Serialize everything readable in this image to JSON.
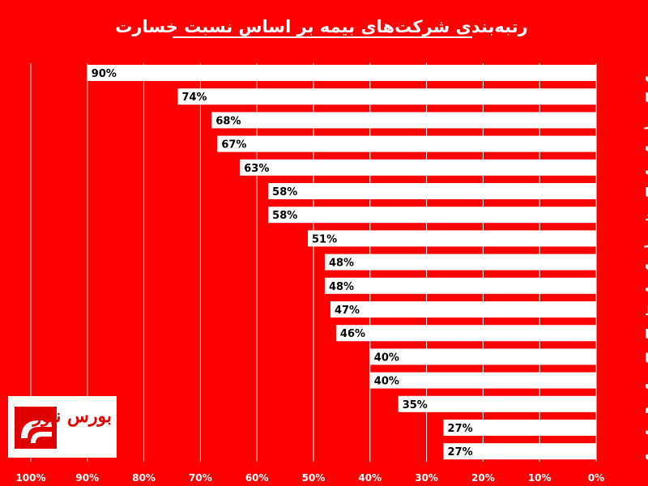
{
  "chart_data": {
    "type": "bar",
    "orientation": "horizontal",
    "title": "رتبه‌بندی شرکت‌های بیمه بر اساس نسبت خسارت",
    "categories": [
      "میهن",
      "دانا",
      "البرز",
      "پارسیان",
      "ودی",
      "آسیا",
      "وسرمد",
      "کوثر",
      "وتعاون",
      "ملت",
      "وحافظ",
      "بساما",
      "ما",
      "نوین",
      "اتکام",
      "اتکای",
      "بپاس"
    ],
    "values": [
      90,
      74,
      68,
      67,
      63,
      58,
      58,
      51,
      48,
      48,
      47,
      46,
      40,
      40,
      35,
      27,
      27
    ],
    "value_labels": [
      "90%",
      "74%",
      "68%",
      "67%",
      "63%",
      "58%",
      "58%",
      "51%",
      "48%",
      "48%",
      "47%",
      "46%",
      "40%",
      "40%",
      "35%",
      "27%",
      "27%"
    ],
    "xlim": [
      0,
      100
    ],
    "x_ticks": [
      "0%",
      "10%",
      "20%",
      "30%",
      "40%",
      "50%",
      "60%",
      "70%",
      "80%",
      "90%",
      "100%"
    ],
    "x_axis_direction": "right-to-left",
    "grid": true,
    "colors": {
      "background": "#ff0000",
      "bar": "#ffffff",
      "grid": "#ffffff",
      "value_text": "#000000"
    }
  },
  "logo": {
    "text": "بورس نیوز"
  }
}
